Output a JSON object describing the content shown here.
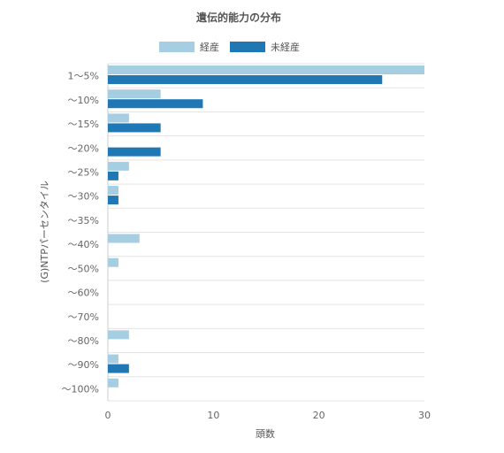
{
  "chart_data": {
    "type": "bar",
    "orientation": "horizontal",
    "title": "遺伝的能力の分布",
    "xlabel": "頭数",
    "ylabel": "(G)NTPパーセンタイル",
    "xlim": [
      0,
      30
    ],
    "x_ticks": [
      "0",
      "10",
      "20",
      "30"
    ],
    "grid": true,
    "legend_position": "top",
    "categories": [
      "1〜5%",
      "〜10%",
      "〜15%",
      "〜20%",
      "〜25%",
      "〜30%",
      "〜35%",
      "〜40%",
      "〜50%",
      "〜60%",
      "〜70%",
      "〜80%",
      "〜90%",
      "〜100%"
    ],
    "series": [
      {
        "name": "経産",
        "color": "#a6cee3",
        "values": [
          30,
          5,
          2,
          0,
          2,
          1,
          0,
          3,
          1,
          0,
          0,
          2,
          1,
          1
        ]
      },
      {
        "name": "未経産",
        "color": "#1f78b4",
        "values": [
          26,
          9,
          5,
          5,
          1,
          1,
          0,
          0,
          0,
          0,
          0,
          0,
          2,
          0
        ]
      }
    ]
  }
}
